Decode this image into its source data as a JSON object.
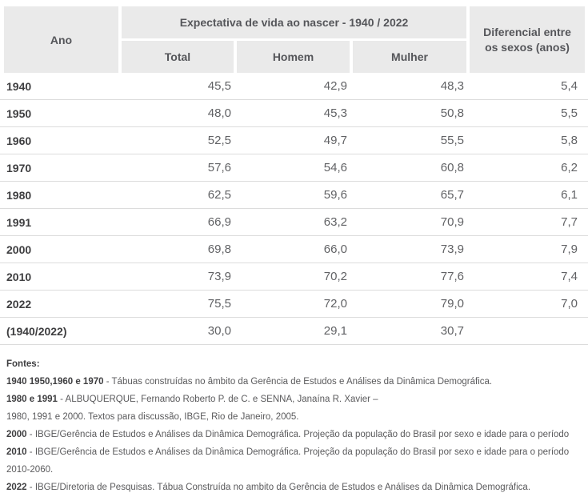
{
  "header": {
    "ano": "Ano",
    "group_title": "Expectativa de vida ao nascer - 1940 / 2022",
    "sub": {
      "total": "Total",
      "homem": "Homem",
      "mulher": "Mulher"
    },
    "diferencial": "Diferencial entre os sexos (anos)"
  },
  "rows": [
    {
      "year": "1940",
      "total": "45,5",
      "homem": "42,9",
      "mulher": "48,3",
      "dif": "5,4"
    },
    {
      "year": "1950",
      "total": "48,0",
      "homem": "45,3",
      "mulher": "50,8",
      "dif": "5,5"
    },
    {
      "year": "1960",
      "total": "52,5",
      "homem": "49,7",
      "mulher": "55,5",
      "dif": "5,8"
    },
    {
      "year": "1970",
      "total": "57,6",
      "homem": "54,6",
      "mulher": "60,8",
      "dif": "6,2"
    },
    {
      "year": "1980",
      "total": "62,5",
      "homem": "59,6",
      "mulher": "65,7",
      "dif": "6,1"
    },
    {
      "year": "1991",
      "total": "66,9",
      "homem": "63,2",
      "mulher": "70,9",
      "dif": "7,7"
    },
    {
      "year": "2000",
      "total": "69,8",
      "homem": "66,0",
      "mulher": "73,9",
      "dif": "7,9"
    },
    {
      "year": "2010",
      "total": "73,9",
      "homem": "70,2",
      "mulher": "77,6",
      "dif": "7,4"
    },
    {
      "year": "2022",
      "total": "75,5",
      "homem": "72,0",
      "mulher": "79,0",
      "dif": "7,0"
    },
    {
      "year": "(1940/2022)",
      "total": "30,0",
      "homem": "29,1",
      "mulher": "30,7",
      "dif": ""
    }
  ],
  "fontes": {
    "title": "Fontes:",
    "lines": [
      {
        "bold": "1940 1950,1960 e 1970",
        "text": " - Tábuas construídas no âmbito da Gerência de Estudos e Análises da Dinâmica Demográfica."
      },
      {
        "bold": "1980 e 1991",
        "text": " - ALBUQUERQUE, Fernando Roberto P. de C. e SENNA, Janaína R. Xavier –"
      },
      {
        "bold": "",
        "text": "1980, 1991 e 2000. Textos para discussão, IBGE, Rio de Janeiro, 2005."
      },
      {
        "bold": "2000",
        "text": " - IBGE/Gerência de Estudos e Análises da Dinâmica Demográfica. Projeção da população do Brasil por sexo e idade para o período"
      },
      {
        "bold": "2010",
        "text": " - IBGE/Gerência de Estudos e Análises da Dinâmica Demográfica. Projeção da população do Brasil por sexo e idade para o período"
      },
      {
        "bold": "",
        "text": "2010-2060."
      },
      {
        "bold": "2022",
        "text": " - IBGE/Diretoria de Pesquisas. Tábua Construída no ambito da Gerência de Estudos e Análises da Dinâmica Demográfica."
      }
    ]
  },
  "colors": {
    "header_bg": "#eaeaea",
    "header_text": "#55565a",
    "year_text": "#3e3e40",
    "value_text": "#616265",
    "row_separator": "#dcdcdc",
    "bottom_rule": "#cfcfcf"
  },
  "chart_data": {
    "type": "table",
    "title": "Expectativa de vida ao nascer - 1940 / 2022",
    "columns": [
      "Ano",
      "Total",
      "Homem",
      "Mulher",
      "Diferencial entre os sexos (anos)"
    ],
    "rows": [
      [
        "1940",
        45.5,
        42.9,
        48.3,
        5.4
      ],
      [
        "1950",
        48.0,
        45.3,
        50.8,
        5.5
      ],
      [
        "1960",
        52.5,
        49.7,
        55.5,
        5.8
      ],
      [
        "1970",
        57.6,
        54.6,
        60.8,
        6.2
      ],
      [
        "1980",
        62.5,
        59.6,
        65.7,
        6.1
      ],
      [
        "1991",
        66.9,
        63.2,
        70.9,
        7.7
      ],
      [
        "2000",
        69.8,
        66.0,
        73.9,
        7.9
      ],
      [
        "2010",
        73.9,
        70.2,
        77.6,
        7.4
      ],
      [
        "2022",
        75.5,
        72.0,
        79.0,
        7.0
      ],
      [
        "(1940/2022)",
        30.0,
        29.1,
        30.7,
        null
      ]
    ]
  }
}
